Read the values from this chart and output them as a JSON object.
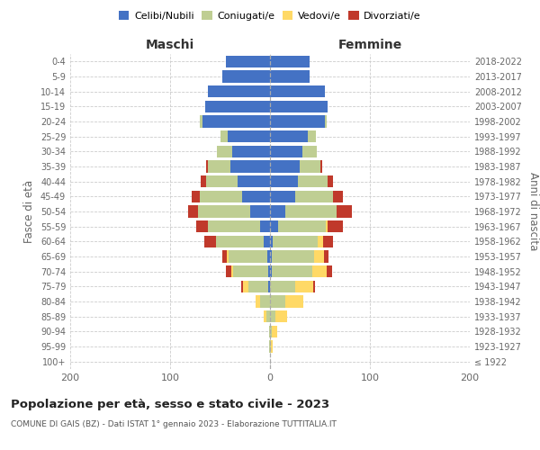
{
  "age_groups": [
    "100+",
    "95-99",
    "90-94",
    "85-89",
    "80-84",
    "75-79",
    "70-74",
    "65-69",
    "60-64",
    "55-59",
    "50-54",
    "45-49",
    "40-44",
    "35-39",
    "30-34",
    "25-29",
    "20-24",
    "15-19",
    "10-14",
    "5-9",
    "0-4"
  ],
  "birth_years": [
    "≤ 1922",
    "1923-1927",
    "1928-1932",
    "1933-1937",
    "1938-1942",
    "1943-1947",
    "1948-1952",
    "1953-1957",
    "1958-1962",
    "1963-1967",
    "1968-1972",
    "1973-1977",
    "1978-1982",
    "1983-1987",
    "1988-1992",
    "1993-1997",
    "1998-2002",
    "2003-2007",
    "2008-2012",
    "2013-2017",
    "2018-2022"
  ],
  "males": {
    "celibi": [
      0,
      0,
      0,
      0,
      0,
      2,
      2,
      3,
      6,
      10,
      20,
      28,
      32,
      40,
      38,
      42,
      68,
      65,
      62,
      48,
      44
    ],
    "coniugati": [
      0,
      1,
      1,
      4,
      10,
      20,
      35,
      38,
      48,
      52,
      52,
      42,
      32,
      22,
      15,
      8,
      2,
      0,
      0,
      0,
      0
    ],
    "vedovi": [
      0,
      0,
      0,
      2,
      4,
      5,
      2,
      2,
      0,
      0,
      0,
      0,
      0,
      0,
      0,
      0,
      0,
      0,
      0,
      0,
      0
    ],
    "divorziati": [
      0,
      0,
      0,
      0,
      0,
      2,
      5,
      5,
      12,
      12,
      10,
      8,
      5,
      2,
      0,
      0,
      0,
      0,
      0,
      0,
      0
    ]
  },
  "females": {
    "nubili": [
      0,
      0,
      0,
      0,
      0,
      0,
      2,
      2,
      3,
      8,
      15,
      25,
      28,
      30,
      32,
      38,
      55,
      58,
      55,
      40,
      40
    ],
    "coniugate": [
      0,
      1,
      2,
      5,
      15,
      25,
      40,
      42,
      45,
      48,
      52,
      38,
      30,
      20,
      15,
      8,
      2,
      0,
      0,
      0,
      0
    ],
    "vedove": [
      0,
      2,
      5,
      12,
      18,
      18,
      15,
      10,
      5,
      2,
      0,
      0,
      0,
      0,
      0,
      0,
      0,
      0,
      0,
      0,
      0
    ],
    "divorziate": [
      0,
      0,
      0,
      0,
      0,
      2,
      5,
      5,
      10,
      15,
      15,
      10,
      5,
      2,
      0,
      0,
      0,
      0,
      0,
      0,
      0
    ]
  },
  "colors": {
    "celibi_nubili": "#4472C4",
    "coniugati_e": "#BFCE93",
    "vedovi_e": "#FFD966",
    "divorziati_e": "#C0392B"
  },
  "title": "Popolazione per età, sesso e stato civile - 2023",
  "subtitle": "COMUNE DI GAIS (BZ) - Dati ISTAT 1° gennaio 2023 - Elaborazione TUTTITALIA.IT",
  "xlabel_left": "Maschi",
  "xlabel_right": "Femmine",
  "ylabel_left": "Fasce di età",
  "ylabel_right": "Anni di nascita",
  "xlim": 200,
  "bg_color": "#ffffff",
  "grid_color": "#cccccc"
}
